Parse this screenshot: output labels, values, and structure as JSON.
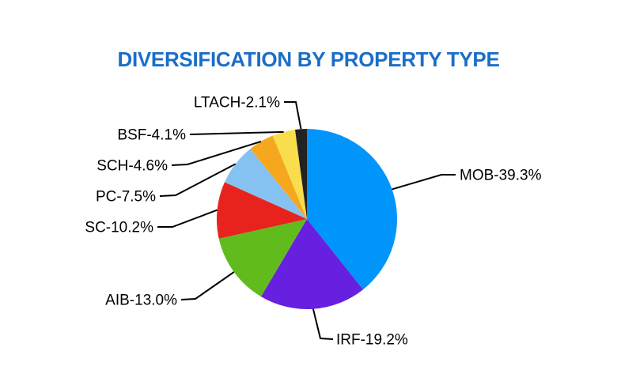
{
  "chart_data": {
    "type": "pie",
    "title": "DIVERSIFICATION BY PROPERTY TYPE",
    "title_color": "#1B6EC8",
    "start_angle_deg": 0,
    "direction": "clockwise",
    "legend_position": "none",
    "label_style": "outside-with-leader-lines",
    "categories": [
      "MOB",
      "IRF",
      "AIB",
      "SC",
      "PC",
      "SCH",
      "BSF",
      "LTACH"
    ],
    "values": [
      39.3,
      19.2,
      13.0,
      10.2,
      7.5,
      4.6,
      4.1,
      2.1
    ],
    "items": [
      {
        "name": "MOB",
        "label": "MOB-39.3%",
        "value": 39.3,
        "color": "#0095FA"
      },
      {
        "name": "IRF",
        "label": "IRF-19.2%",
        "value": 19.2,
        "color": "#671FE0"
      },
      {
        "name": "AIB",
        "label": "AIB-13.0%",
        "value": 13.0,
        "color": "#61BB1D"
      },
      {
        "name": "SC",
        "label": "SC-10.2%",
        "value": 10.2,
        "color": "#E8231D"
      },
      {
        "name": "PC",
        "label": "PC-7.5%",
        "value": 7.5,
        "color": "#85C2F2"
      },
      {
        "name": "SCH",
        "label": "SCH-4.6%",
        "value": 4.6,
        "color": "#F5A81E"
      },
      {
        "name": "BSF",
        "label": "BSF-4.1%",
        "value": 4.1,
        "color": "#FADD4D"
      },
      {
        "name": "LTACH",
        "label": "LTACH-2.1%",
        "value": 2.1,
        "color": "#222222"
      }
    ],
    "leader_line_color": "#000000",
    "label_color": "#000000",
    "background_color": "#FFFFFF"
  }
}
